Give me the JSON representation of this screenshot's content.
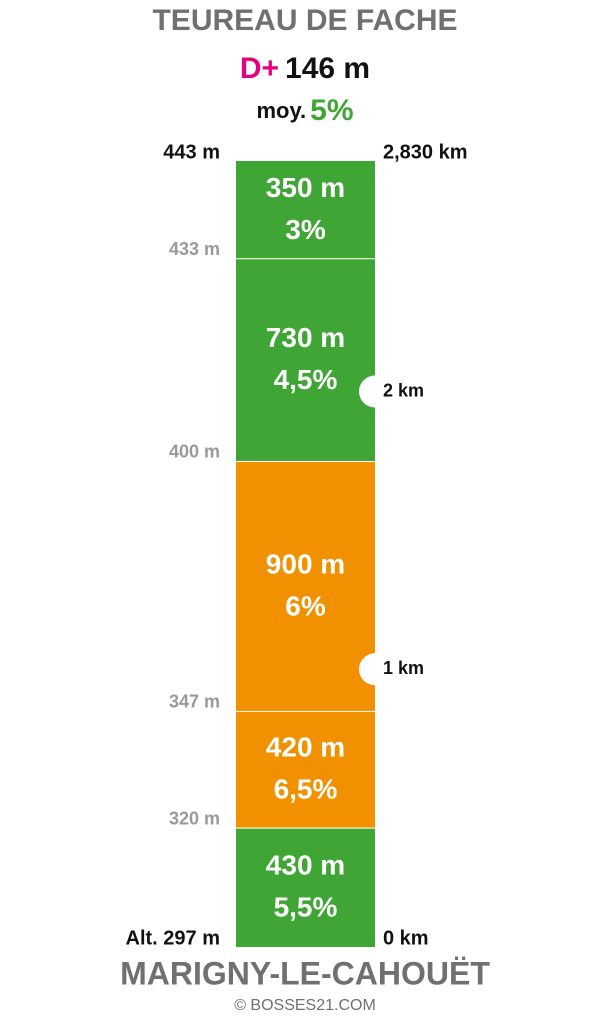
{
  "chart_data": {
    "type": "climb",
    "title": "TEUREAU DE FACHE",
    "gain_prefix": "D+",
    "gain": "146 m",
    "average_prefix": "moy.",
    "average": "5%",
    "start_name": "MARIGNY-LE-CAHOUËT",
    "credit": "© BOSSES21.COM",
    "values": [
      430,
      420,
      900,
      730,
      350
    ],
    "value_labels": [
      "430 m",
      "420 m",
      "900 m",
      "730 m",
      "350 m"
    ],
    "grade_labels": [
      "5,5%",
      "6,5%",
      "6%",
      "4,5%",
      "3%"
    ],
    "colors": [
      "#3fa535",
      "#f29100",
      "#f29100",
      "#3fa535",
      "#3fa535"
    ],
    "altitude_labels": [
      "Alt. 297 m",
      "320 m",
      "347 m",
      "400 m",
      "433 m",
      "443 m"
    ],
    "ylim": [
      0,
      2830
    ],
    "distance_marks": [
      {
        "value": 0,
        "label": "0 km"
      },
      {
        "value": 1000,
        "label": "1 km"
      },
      {
        "value": 2000,
        "label": "2 km"
      },
      {
        "value": 2830,
        "label": "2,830 km"
      }
    ]
  }
}
